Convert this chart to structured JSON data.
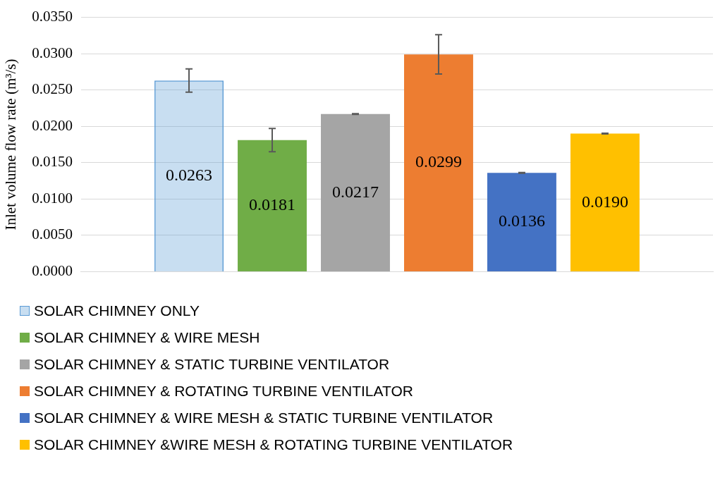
{
  "chart_data": {
    "type": "bar",
    "ylabel": "Inlet volume flow rate (m³/s)",
    "categories": [
      null
    ],
    "series": [
      {
        "name": "SOLAR CHIMNEY ONLY",
        "color": "#5b9bd5",
        "values": [
          0.0263
        ],
        "value_labels": [
          "0.0263"
        ],
        "errors": [
          0.0016
        ]
      },
      {
        "name": "SOLAR CHIMNEY & WIRE MESH",
        "color": "#70ad47",
        "values": [
          0.0181
        ],
        "value_labels": [
          "0.0181"
        ],
        "errors": [
          0.0016
        ]
      },
      {
        "name": "SOLAR CHIMNEY & STATIC TURBINE VENTILATOR",
        "color": "#a5a5a5",
        "values": [
          0.0217
        ],
        "value_labels": [
          "0.0217"
        ],
        "errors": [
          5e-05
        ]
      },
      {
        "name": "SOLAR CHIMNEY & ROTATING TURBINE VENTILATOR",
        "color": "#ed7d31",
        "values": [
          0.0299
        ],
        "value_labels": [
          "0.0299"
        ],
        "errors": [
          0.0027
        ]
      },
      {
        "name": "SOLAR CHIMNEY & WIRE MESH & STATIC TURBINE VENTILATOR",
        "color": "#4472c4",
        "values": [
          0.0136
        ],
        "value_labels": [
          "0.0136"
        ],
        "errors": [
          5e-05
        ]
      },
      {
        "name": "SOLAR CHIMNEY &WIRE MESH & ROTATING TURBINE VENTILATOR",
        "color": "#ffc000",
        "values": [
          0.019
        ],
        "value_labels": [
          "0.0190"
        ],
        "errors": [
          5e-05
        ]
      }
    ],
    "ylim": [
      0,
      0.035
    ],
    "yticks": [
      {
        "value": 0,
        "label": "0.0000"
      },
      {
        "value": 0.005,
        "label": "0.0050"
      },
      {
        "value": 0.01,
        "label": "0.0100"
      },
      {
        "value": 0.015,
        "label": "0.0150"
      },
      {
        "value": 0.02,
        "label": "0.0200"
      },
      {
        "value": 0.025,
        "label": "0.0250"
      },
      {
        "value": 0.03,
        "label": "0.0300"
      },
      {
        "value": 0.035,
        "label": "0.0350"
      }
    ],
    "grid": "y",
    "legend": "bottom"
  }
}
